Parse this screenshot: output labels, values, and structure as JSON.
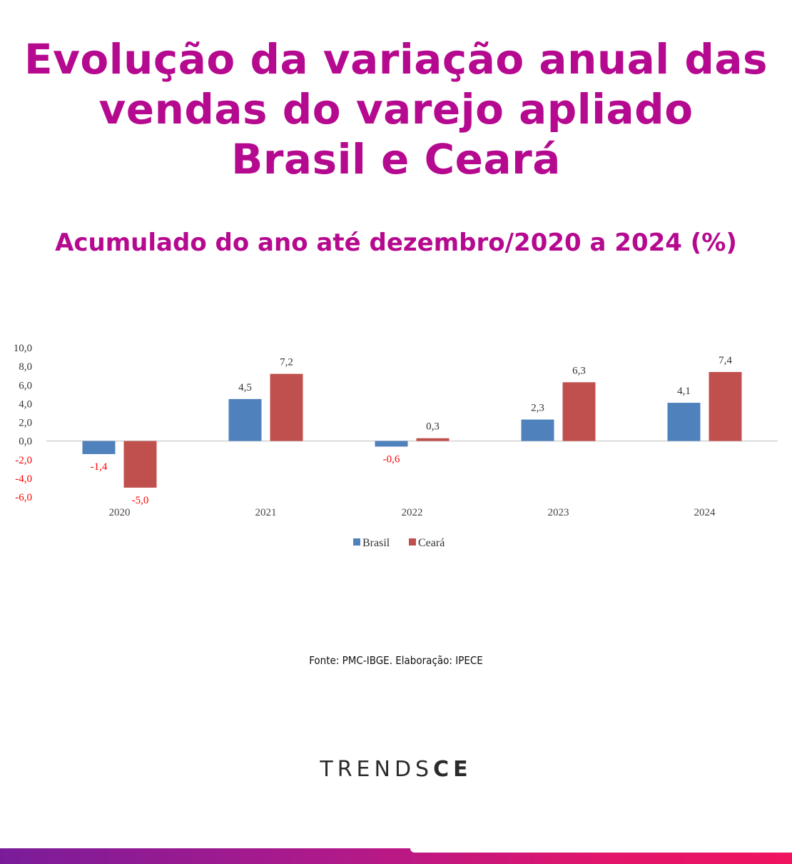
{
  "header": {
    "title_lines": [
      "Evolução da variação anual das",
      "vendas do varejo apliado",
      "Brasil e Ceará"
    ],
    "subtitle": "Acumulado do ano até dezembro/2020 a 2024 (%)"
  },
  "chart_data": {
    "type": "bar",
    "categories": [
      "2020",
      "2021",
      "2022",
      "2023",
      "2024"
    ],
    "series": [
      {
        "name": "Brasil",
        "values": [
          -1.4,
          4.5,
          -0.6,
          2.3,
          4.1
        ],
        "color": "#4f81bd"
      },
      {
        "name": "Ceará",
        "values": [
          -5.0,
          7.2,
          0.3,
          6.3,
          7.4
        ],
        "color": "#c0504d"
      }
    ],
    "data_labels": [
      [
        "-1,4",
        "4,5",
        "-0,6",
        "2,3",
        "4,1"
      ],
      [
        "-5,0",
        "7,2",
        "0,3",
        "6,3",
        "7,4"
      ]
    ],
    "ylim": [
      -6,
      10
    ],
    "yticks": [
      10,
      8,
      6,
      4,
      2,
      0,
      -2,
      -4,
      -6
    ],
    "ytick_labels": [
      "10,0",
      "8,0",
      "6,0",
      "4,0",
      "2,0",
      "0,0",
      "-2,0",
      "-4,0",
      "-6,0"
    ],
    "negative_label_color": "#ff0000",
    "legend_position": "bottom-center",
    "grid": false,
    "xlabel": "",
    "ylabel": "",
    "title": ""
  },
  "footer": {
    "source": "Fonte: PMC-IBGE. Elaboração: IPECE",
    "logo_light": "TRENDS",
    "logo_bold": "CE"
  }
}
